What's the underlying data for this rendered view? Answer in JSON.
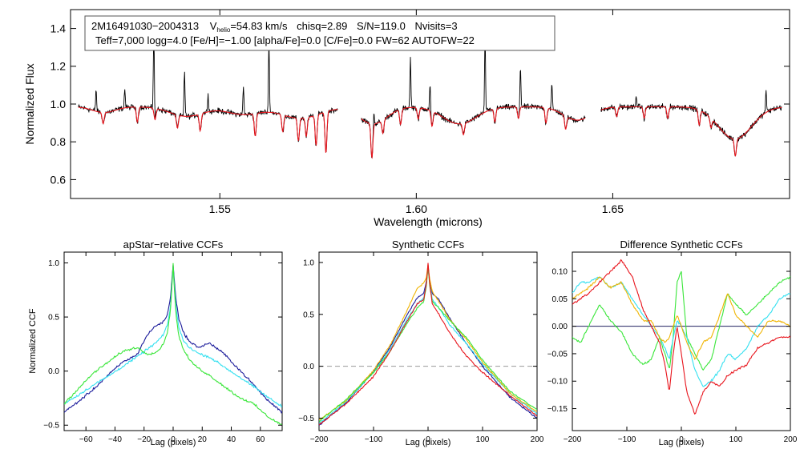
{
  "colors": {
    "black": "#000000",
    "model": "#e8141c",
    "navy": "#1a1a9a",
    "cyan": "#33e0f0",
    "green": "#39e639",
    "orange": "#f0b400",
    "red": "#e8141c",
    "grey": "#9a9a9a"
  },
  "chart_data": [
    {
      "id": "spectrum",
      "type": "line",
      "title": "",
      "xlabel": "Wavelength (microns)",
      "ylabel": "Normalized Flux",
      "xlim": [
        1.512,
        1.695
      ],
      "ylim": [
        0.5,
        1.5
      ],
      "xticks": [
        1.55,
        1.6,
        1.65
      ],
      "xtick_labels": [
        "1.55",
        "1.60",
        "1.65"
      ],
      "yticks": [
        0.6,
        0.8,
        1.0,
        1.2,
        1.4
      ],
      "ytick_labels": [
        "0.6",
        "0.8",
        "1.0",
        "1.2",
        "1.4"
      ],
      "annotation": {
        "line1_star": "2M16491030−2004313",
        "line1_vhelio_symbol": "V",
        "line1_vhelio_sub": "helio",
        "line1_vhelio_value": "=54.83 km/s",
        "line1_chisq": "chisq=2.89",
        "line1_sn": "S/N=119.0",
        "line1_nvisits": "Nvisits=3",
        "line2": "Teff=7,000 logg=4.0 [Fe/H]=−1.00 [alpha/Fe]=0.0 [C/Fe]=0.0 FW=62 AUTOFW=22"
      },
      "chips": [
        [
          1.514,
          1.58
        ],
        [
          1.586,
          1.643
        ],
        [
          1.647,
          1.693
        ]
      ],
      "continuum": 0.985,
      "emission_lines": [
        {
          "x": 1.5332,
          "h": 0.42
        },
        {
          "x": 1.541,
          "h": 0.25
        },
        {
          "x": 1.556,
          "h": 0.15
        },
        {
          "x": 1.5625,
          "h": 0.38
        },
        {
          "x": 1.5185,
          "h": 0.12
        },
        {
          "x": 1.5258,
          "h": 0.1
        },
        {
          "x": 1.547,
          "h": 0.1
        },
        {
          "x": 1.5892,
          "h": 0.08
        },
        {
          "x": 1.5985,
          "h": 0.26
        },
        {
          "x": 1.6035,
          "h": 0.15
        },
        {
          "x": 1.6175,
          "h": 0.38
        },
        {
          "x": 1.6265,
          "h": 0.22
        },
        {
          "x": 1.6345,
          "h": 0.13
        },
        {
          "x": 1.689,
          "h": 0.12
        },
        {
          "x": 1.656,
          "h": 0.06
        }
      ],
      "absorption_lines": [
        {
          "x": 1.5203,
          "d": 0.06
        },
        {
          "x": 1.529,
          "d": 0.08
        },
        {
          "x": 1.5335,
          "d": 0.06
        },
        {
          "x": 1.5392,
          "d": 0.07
        },
        {
          "x": 1.545,
          "d": 0.09
        },
        {
          "x": 1.559,
          "d": 0.12
        },
        {
          "x": 1.566,
          "d": 0.09
        },
        {
          "x": 1.57,
          "d": 0.12
        },
        {
          "x": 1.572,
          "d": 0.1
        },
        {
          "x": 1.5745,
          "d": 0.16
        },
        {
          "x": 1.577,
          "d": 0.22
        },
        {
          "x": 1.5887,
          "d": 0.18
        },
        {
          "x": 1.5915,
          "d": 0.07
        },
        {
          "x": 1.596,
          "d": 0.08
        },
        {
          "x": 1.6005,
          "d": 0.06
        },
        {
          "x": 1.604,
          "d": 0.08
        },
        {
          "x": 1.612,
          "d": 0.06
        },
        {
          "x": 1.62,
          "d": 0.07
        },
        {
          "x": 1.626,
          "d": 0.06
        },
        {
          "x": 1.633,
          "d": 0.08
        },
        {
          "x": 1.638,
          "d": 0.07
        },
        {
          "x": 1.651,
          "d": 0.05
        },
        {
          "x": 1.658,
          "d": 0.06
        },
        {
          "x": 1.664,
          "d": 0.06
        },
        {
          "x": 1.672,
          "d": 0.08
        },
        {
          "x": 1.675,
          "d": 0.05
        },
        {
          "x": 1.6812,
          "d": 0.09
        }
      ],
      "broad_features": [
        {
          "x": 1.5205,
          "w": 0.004,
          "d": 0.03
        },
        {
          "x": 1.5416,
          "w": 0.006,
          "d": 0.05
        },
        {
          "x": 1.556,
          "w": 0.006,
          "d": 0.04
        },
        {
          "x": 1.5705,
          "w": 0.007,
          "d": 0.06
        },
        {
          "x": 1.589,
          "w": 0.005,
          "d": 0.09
        },
        {
          "x": 1.611,
          "w": 0.006,
          "d": 0.09
        },
        {
          "x": 1.641,
          "w": 0.005,
          "d": 0.07
        },
        {
          "x": 1.6811,
          "w": 0.006,
          "d": 0.17
        }
      ]
    },
    {
      "id": "ccf_apstar",
      "type": "line",
      "title": "apStar−relative CCFs",
      "xlabel": "Lag (pixels)",
      "ylabel": "Normalized CCF",
      "xlim": [
        -75,
        75
      ],
      "ylim": [
        -0.55,
        1.1
      ],
      "xticks": [
        -60,
        -40,
        -20,
        0,
        20,
        40,
        60
      ],
      "xtick_labels": [
        "−60",
        "−40",
        "−20",
        "0",
        "20",
        "40",
        "60"
      ],
      "yticks": [
        -0.5,
        0.0,
        0.5,
        1.0
      ],
      "ytick_labels": [
        "−0.5",
        "0.0",
        "0.5",
        "1.0"
      ],
      "series": [
        {
          "name": "navy",
          "color_key": "navy",
          "x": [
            -75,
            -65,
            -55,
            -45,
            -35,
            -25,
            -18,
            -12,
            -7,
            -4,
            -2,
            -1,
            0,
            1,
            2,
            4,
            7,
            12,
            18,
            25,
            35,
            45,
            55,
            65,
            75
          ],
          "y": [
            -0.38,
            -0.28,
            -0.17,
            -0.04,
            0.08,
            0.15,
            0.33,
            0.42,
            0.45,
            0.52,
            0.66,
            0.82,
            0.98,
            0.82,
            0.66,
            0.48,
            0.36,
            0.26,
            0.22,
            0.26,
            0.16,
            0.02,
            -0.12,
            -0.27,
            -0.38
          ]
        },
        {
          "name": "cyan",
          "color_key": "cyan",
          "x": [
            -75,
            -65,
            -55,
            -45,
            -35,
            -25,
            -18,
            -12,
            -7,
            -4,
            -2,
            -1,
            0,
            1,
            2,
            4,
            7,
            12,
            18,
            25,
            35,
            45,
            55,
            65,
            75
          ],
          "y": [
            -0.3,
            -0.22,
            -0.13,
            -0.05,
            0.04,
            0.13,
            0.2,
            0.26,
            0.33,
            0.42,
            0.58,
            0.76,
            0.97,
            0.76,
            0.58,
            0.4,
            0.28,
            0.21,
            0.16,
            0.13,
            0.04,
            -0.05,
            -0.14,
            -0.24,
            -0.33
          ]
        },
        {
          "name": "green",
          "color_key": "green",
          "x": [
            -75,
            -65,
            -55,
            -45,
            -35,
            -25,
            -18,
            -12,
            -7,
            -4,
            -2,
            -1,
            0,
            1,
            2,
            4,
            7,
            12,
            18,
            25,
            35,
            45,
            55,
            65,
            75
          ],
          "y": [
            -0.3,
            -0.16,
            -0.02,
            0.08,
            0.18,
            0.22,
            0.16,
            0.17,
            0.24,
            0.36,
            0.54,
            0.74,
            1.0,
            0.72,
            0.52,
            0.32,
            0.2,
            0.09,
            0.02,
            -0.04,
            -0.14,
            -0.24,
            -0.3,
            -0.42,
            -0.5
          ]
        }
      ]
    },
    {
      "id": "ccf_synthetic",
      "type": "line",
      "title": "Synthetic CCFs",
      "xlabel": "Lag (pixels)",
      "ylabel": "",
      "xlim": [
        -200,
        200
      ],
      "ylim": [
        -0.62,
        1.1
      ],
      "xticks": [
        -200,
        -100,
        0,
        100,
        200
      ],
      "xtick_labels": [
        "−200",
        "−100",
        "0",
        "100",
        "200"
      ],
      "yticks": [
        -0.5,
        0.0,
        0.5,
        1.0
      ],
      "ytick_labels": [
        "−0.5",
        "0.0",
        "0.5",
        "1.0"
      ],
      "zero_line": 0.0,
      "series": [
        {
          "name": "navy",
          "color_key": "navy",
          "x": [
            -200,
            -150,
            -100,
            -70,
            -40,
            -20,
            -8,
            -3,
            0,
            3,
            8,
            20,
            40,
            70,
            100,
            150,
            200
          ],
          "y": [
            -0.57,
            -0.35,
            -0.05,
            0.18,
            0.48,
            0.66,
            0.7,
            0.82,
            0.97,
            0.82,
            0.7,
            0.64,
            0.46,
            0.22,
            0.0,
            -0.3,
            -0.5
          ]
        },
        {
          "name": "cyan",
          "color_key": "cyan",
          "x": [
            -200,
            -150,
            -100,
            -70,
            -40,
            -20,
            -8,
            -3,
            0,
            3,
            8,
            20,
            40,
            70,
            100,
            150,
            200
          ],
          "y": [
            -0.55,
            -0.34,
            -0.06,
            0.16,
            0.44,
            0.6,
            0.66,
            0.8,
            0.97,
            0.8,
            0.64,
            0.56,
            0.4,
            0.22,
            0.02,
            -0.26,
            -0.46
          ]
        },
        {
          "name": "orange",
          "color_key": "orange",
          "x": [
            -200,
            -150,
            -100,
            -70,
            -40,
            -20,
            -8,
            -3,
            0,
            3,
            8,
            20,
            40,
            70,
            100,
            150,
            200
          ],
          "y": [
            -0.52,
            -0.33,
            -0.04,
            0.2,
            0.52,
            0.75,
            0.8,
            0.86,
            0.98,
            0.84,
            0.72,
            0.62,
            0.45,
            0.26,
            0.04,
            -0.26,
            -0.44
          ]
        },
        {
          "name": "green",
          "color_key": "green",
          "x": [
            -200,
            -150,
            -100,
            -70,
            -40,
            -20,
            -8,
            -3,
            0,
            3,
            8,
            20,
            40,
            70,
            100,
            150,
            200
          ],
          "y": [
            -0.53,
            -0.32,
            -0.06,
            0.14,
            0.4,
            0.56,
            0.62,
            0.78,
            0.96,
            0.78,
            0.62,
            0.56,
            0.44,
            0.28,
            0.06,
            -0.24,
            -0.42
          ]
        },
        {
          "name": "red",
          "color_key": "red",
          "x": [
            -200,
            -150,
            -100,
            -70,
            -40,
            -20,
            -8,
            -3,
            0,
            3,
            8,
            20,
            40,
            70,
            100,
            150,
            200
          ],
          "y": [
            -0.56,
            -0.36,
            -0.1,
            0.14,
            0.42,
            0.6,
            0.64,
            0.8,
            0.99,
            0.8,
            0.6,
            0.5,
            0.32,
            0.1,
            -0.06,
            -0.28,
            -0.48
          ]
        }
      ]
    },
    {
      "id": "ccf_difference",
      "type": "line",
      "title": "Difference Synthetic CCFs",
      "xlabel": "Lag (pixels)",
      "ylabel": "",
      "xlim": [
        -200,
        200
      ],
      "ylim": [
        -0.19,
        0.135
      ],
      "xticks": [
        -200,
        -100,
        0,
        100,
        200
      ],
      "xtick_labels": [
        "−200",
        "−100",
        "0",
        "100",
        "200"
      ],
      "yticks": [
        -0.15,
        -0.1,
        -0.05,
        0.0,
        0.05,
        0.1
      ],
      "ytick_labels": [
        "−0.15",
        "−0.10",
        "−0.05",
        "0.00",
        "0.05",
        "0.10"
      ],
      "zero_line": 0.0,
      "series": [
        {
          "name": "green",
          "color_key": "green",
          "x": [
            -200,
            -185,
            -170,
            -150,
            -130,
            -110,
            -90,
            -70,
            -55,
            -40,
            -30,
            -22,
            -15,
            -8,
            0,
            10,
            25,
            40,
            55,
            70,
            85,
            100,
            120,
            140,
            160,
            180,
            200
          ],
          "y": [
            -0.02,
            -0.03,
            0.0,
            0.04,
            0.01,
            -0.01,
            -0.05,
            -0.07,
            -0.06,
            -0.02,
            -0.05,
            -0.08,
            -0.02,
            0.08,
            0.1,
            -0.02,
            -0.05,
            -0.08,
            -0.06,
            0.0,
            0.06,
            0.04,
            0.02,
            0.04,
            0.06,
            0.08,
            0.09
          ]
        },
        {
          "name": "cyan",
          "color_key": "cyan",
          "x": [
            -200,
            -185,
            -170,
            -150,
            -130,
            -110,
            -90,
            -70,
            -55,
            -40,
            -30,
            -22,
            -15,
            -8,
            0,
            10,
            25,
            40,
            55,
            70,
            85,
            100,
            120,
            140,
            160,
            180,
            200
          ],
          "y": [
            0.06,
            0.08,
            0.08,
            0.09,
            0.07,
            0.08,
            0.05,
            0.02,
            0.0,
            -0.02,
            -0.04,
            -0.06,
            -0.02,
            0.01,
            0.0,
            -0.02,
            -0.08,
            -0.11,
            -0.1,
            -0.08,
            -0.05,
            -0.06,
            -0.04,
            0.0,
            0.02,
            0.05,
            0.06
          ]
        },
        {
          "name": "orange",
          "color_key": "orange",
          "x": [
            -200,
            -185,
            -170,
            -150,
            -130,
            -110,
            -90,
            -70,
            -55,
            -40,
            -30,
            -22,
            -15,
            -8,
            0,
            10,
            25,
            40,
            55,
            70,
            85,
            100,
            120,
            140,
            160,
            180,
            200
          ],
          "y": [
            0.05,
            0.06,
            0.07,
            0.09,
            0.07,
            0.08,
            0.04,
            0.01,
            0.01,
            -0.02,
            -0.03,
            -0.02,
            0.0,
            0.02,
            0.0,
            -0.03,
            -0.06,
            -0.03,
            -0.02,
            0.02,
            0.06,
            0.02,
            0.0,
            -0.02,
            0.01,
            0.01,
            0.0
          ]
        },
        {
          "name": "red",
          "color_key": "red",
          "x": [
            -200,
            -185,
            -170,
            -150,
            -130,
            -110,
            -90,
            -70,
            -55,
            -40,
            -30,
            -22,
            -15,
            -8,
            0,
            10,
            25,
            40,
            55,
            70,
            85,
            100,
            120,
            140,
            160,
            180,
            200
          ],
          "y": [
            0.04,
            0.05,
            0.06,
            0.08,
            0.1,
            0.12,
            0.09,
            0.03,
            0.0,
            -0.03,
            -0.07,
            -0.12,
            -0.05,
            0.0,
            -0.05,
            -0.12,
            -0.16,
            -0.12,
            -0.1,
            -0.11,
            -0.09,
            -0.08,
            -0.07,
            -0.04,
            -0.03,
            -0.02,
            -0.02
          ]
        }
      ]
    }
  ]
}
